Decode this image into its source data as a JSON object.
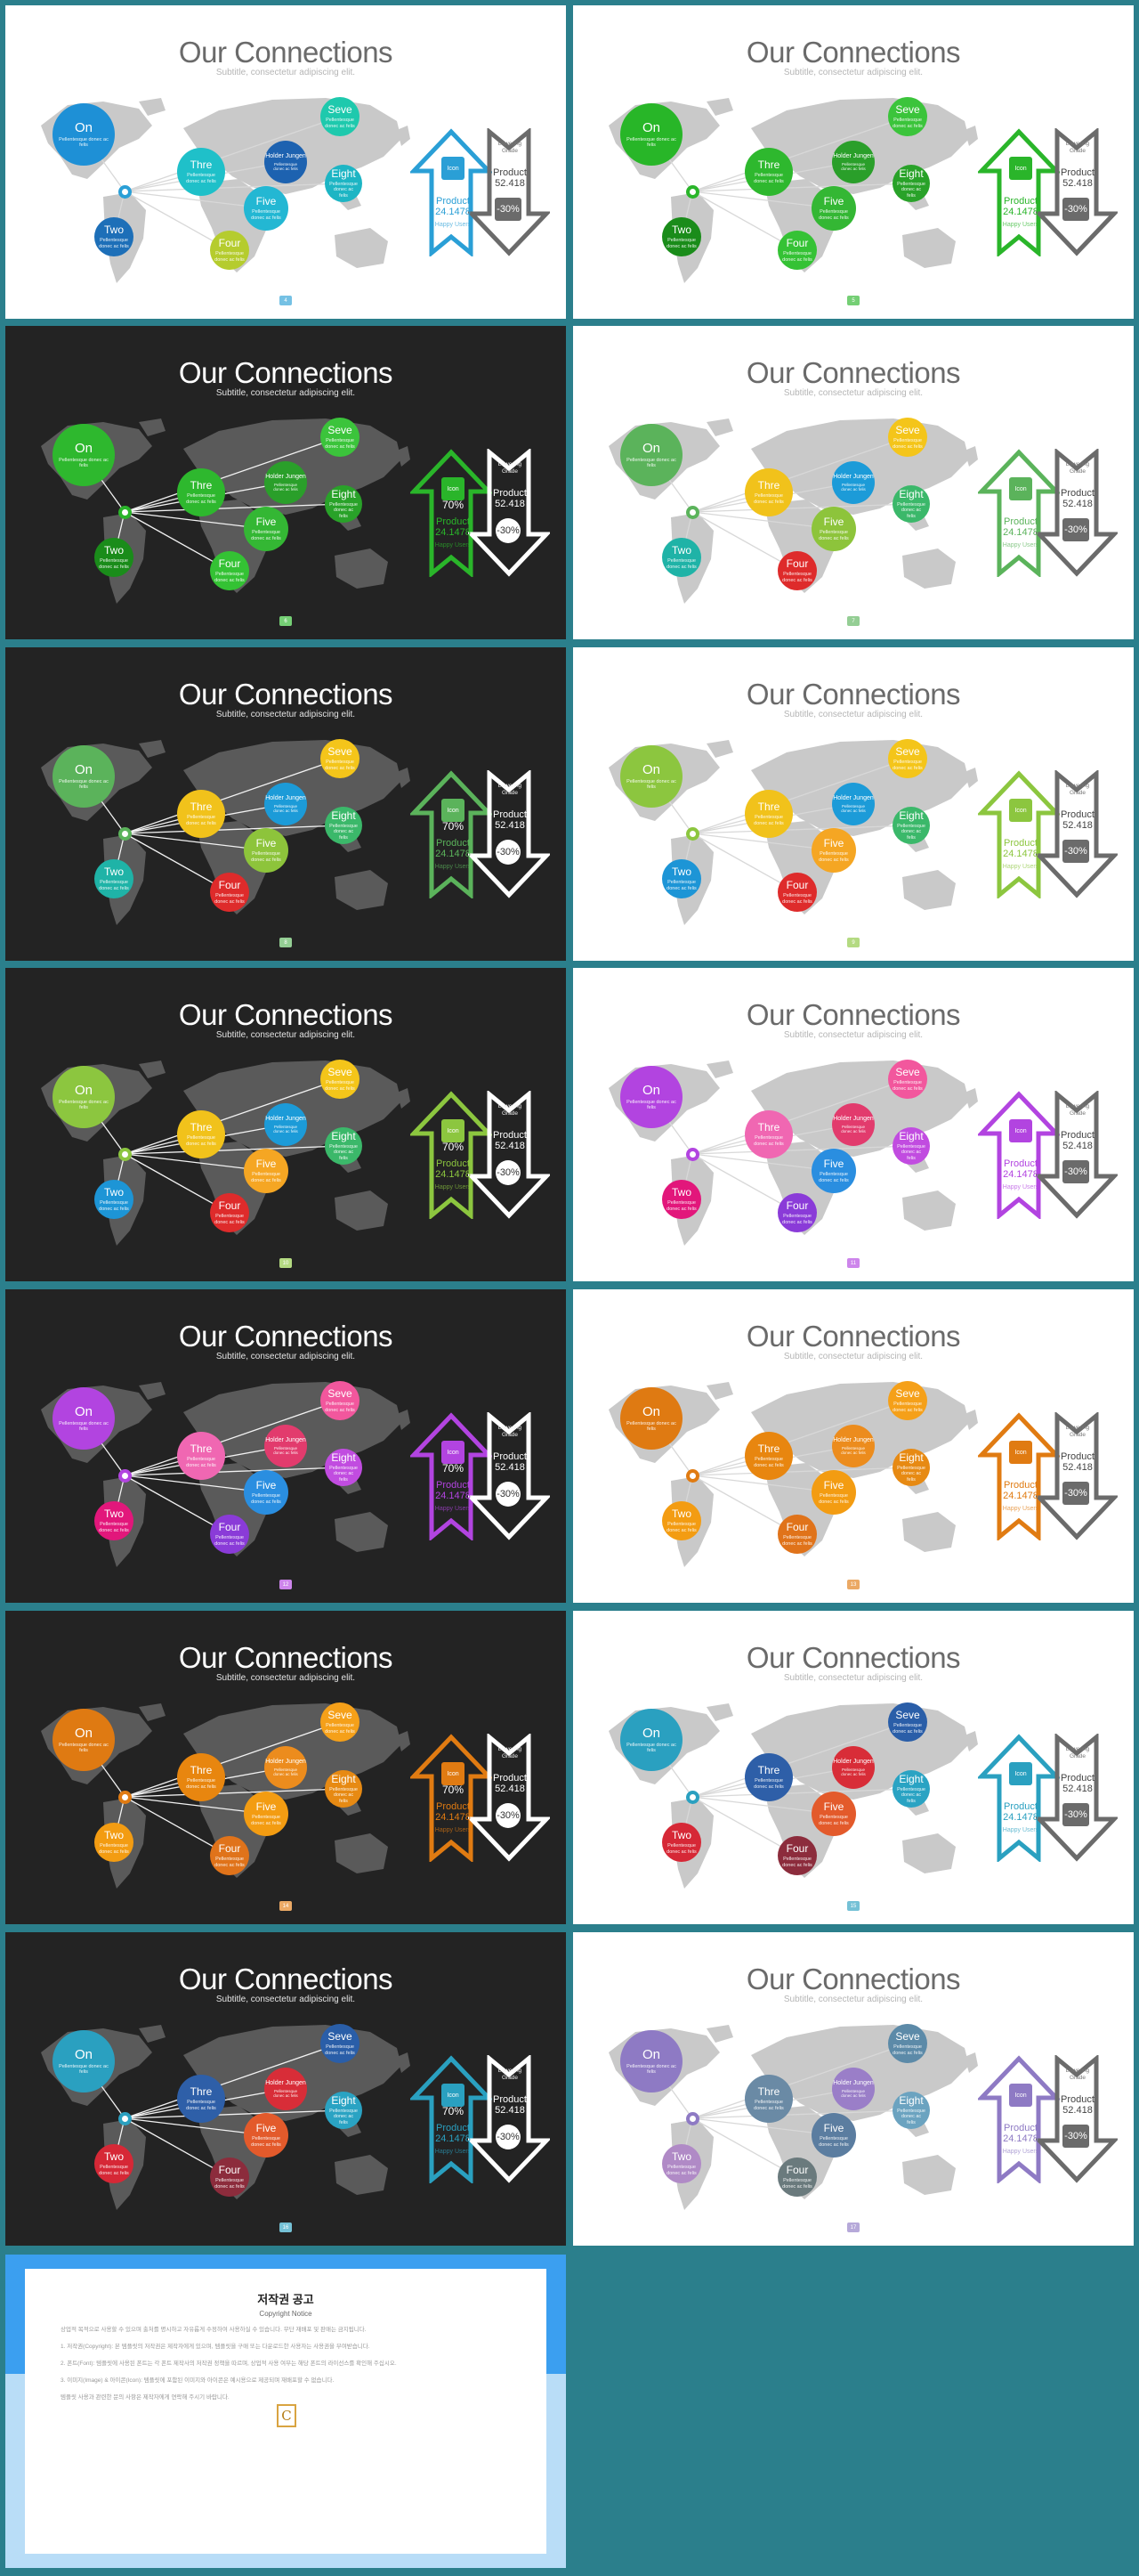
{
  "common": {
    "title": "Our Connections",
    "subtitle": "Subtitle, consectetur adipiscing elit.",
    "bubble_desc": "Pellentesque donec ac felis",
    "up_percent": "70%",
    "up_product": "Product 24.1478",
    "up_fine": "Happy Users",
    "down_label": "Lowering Grade",
    "down_product": "Product 52.418",
    "down_percent": "-30%",
    "square_label": "Icon"
  },
  "bubbles": {
    "on": "On",
    "two": "Two",
    "three": "Thre",
    "four": "Four",
    "five": "Five",
    "six": "Holder Jungen",
    "seven": "Seve",
    "eight": "Eight"
  },
  "slides": [
    {
      "page": "4",
      "theme": "light",
      "accent": "#2a9fd6",
      "colors": {
        "on": "#1e90d6",
        "two": "#1d6fb8",
        "three": "#1fc0c9",
        "four": "#b5cc2e",
        "five": "#23b7d3",
        "six": "#1d62b0",
        "seven": "#1ec9ad",
        "eight": "#1db5c4"
      }
    },
    {
      "page": "5",
      "theme": "light",
      "accent": "#2ab52a",
      "colors": {
        "on": "#28b628",
        "two": "#1a8c1a",
        "three": "#2eb82e",
        "four": "#35c235",
        "five": "#34b734",
        "six": "#2a9f2a",
        "seven": "#3bc43b",
        "eight": "#29a229"
      }
    },
    {
      "page": "6",
      "theme": "dark",
      "accent": "#2ab52a",
      "colors": {
        "on": "#2eb82e",
        "two": "#1a8c1a",
        "three": "#2eb82e",
        "four": "#34c234",
        "five": "#34b734",
        "six": "#2a9f2a",
        "seven": "#3bc43b",
        "eight": "#29a229"
      }
    },
    {
      "page": "7",
      "theme": "light",
      "accent": "#5bb35b",
      "colors": {
        "on": "#5bb35b",
        "two": "#1fb3a7",
        "three": "#f1c21b",
        "four": "#de2b2b",
        "five": "#8dc43b",
        "six": "#1c9bd8",
        "seven": "#f4c51a",
        "eight": "#3bb86a"
      }
    },
    {
      "page": "8",
      "theme": "dark",
      "accent": "#5bb35b",
      "colors": {
        "on": "#5bb35b",
        "two": "#1fb3a7",
        "three": "#f1c21b",
        "four": "#de2b2b",
        "five": "#8dc43b",
        "six": "#1c9bd8",
        "seven": "#f4c51a",
        "eight": "#3bb86a"
      }
    },
    {
      "page": "9",
      "theme": "light",
      "accent": "#8cc63f",
      "colors": {
        "on": "#8cc63f",
        "two": "#1d95d6",
        "three": "#f1c21b",
        "four": "#de2b2b",
        "five": "#f5a623",
        "six": "#1c9bd8",
        "seven": "#f4c51a",
        "eight": "#3bb86a"
      }
    },
    {
      "page": "10",
      "theme": "dark",
      "accent": "#8cc63f",
      "colors": {
        "on": "#8cc63f",
        "two": "#1d95d6",
        "three": "#f1c21b",
        "four": "#de2b2b",
        "five": "#f5a623",
        "six": "#1c9bd8",
        "seven": "#f4c51a",
        "eight": "#3bb86a"
      }
    },
    {
      "page": "11",
      "theme": "light",
      "accent": "#b244e0",
      "colors": {
        "on": "#b244e0",
        "two": "#e2177b",
        "three": "#f067b2",
        "four": "#8a3bd8",
        "five": "#2a8ee0",
        "six": "#e23b6d",
        "seven": "#f2579d",
        "eight": "#c14ce0"
      }
    },
    {
      "page": "12",
      "theme": "dark",
      "accent": "#b244e0",
      "colors": {
        "on": "#b244e0",
        "two": "#e2177b",
        "three": "#f067b2",
        "four": "#8a3bd8",
        "five": "#2a8ee0",
        "six": "#e23b6d",
        "seven": "#f2579d",
        "eight": "#c14ce0"
      }
    },
    {
      "page": "13",
      "theme": "light",
      "accent": "#e07b12",
      "colors": {
        "on": "#df7a12",
        "two": "#f39c12",
        "three": "#e8860f",
        "four": "#e0731a",
        "five": "#f39c12",
        "six": "#ec8c1d",
        "seven": "#f5a019",
        "eight": "#e78a13"
      }
    },
    {
      "page": "14",
      "theme": "dark",
      "accent": "#e07b12",
      "colors": {
        "on": "#df7a12",
        "two": "#f39c12",
        "three": "#e8860f",
        "four": "#e0731a",
        "five": "#f39c12",
        "six": "#ec8c1d",
        "seven": "#f5a019",
        "eight": "#e78a13"
      }
    },
    {
      "page": "15",
      "theme": "light",
      "accent": "#2aa0c0",
      "colors": {
        "on": "#2aa0c0",
        "two": "#d62836",
        "three": "#2e5fa8",
        "four": "#8c2c3c",
        "five": "#e35a2b",
        "six": "#d82d38",
        "seven": "#2a5ea8",
        "eight": "#2aa3c3"
      }
    },
    {
      "page": "16",
      "theme": "dark",
      "accent": "#2aa0c0",
      "colors": {
        "on": "#2aa0c0",
        "two": "#d62836",
        "three": "#2e5fa8",
        "four": "#8c2c3c",
        "five": "#e35a2b",
        "six": "#d82d38",
        "seven": "#2a5ea8",
        "eight": "#2aa3c3"
      }
    },
    {
      "page": "17",
      "theme": "light",
      "accent": "#8e7ac4",
      "colors": {
        "on": "#8e7ac4",
        "two": "#b08ac6",
        "three": "#6a8aa5",
        "four": "#6a7a7d",
        "five": "#5b7da0",
        "six": "#9a7ec8",
        "seven": "#5c8aa8",
        "eight": "#6ba3c0"
      }
    }
  ],
  "copyright": {
    "title": "저작권 공고",
    "subtitle": "Copyright Notice",
    "p1": "상업적 목적으로 사용할 수 있으며 출처를 명시하고 자유롭게 수정하여 사용하실 수 있습니다. 무단 재배포 및 판매는 금지됩니다.",
    "p2": "1. 저작권(Copyright): 본 템플릿의 저작권은 제작자에게 있으며, 템플릿을 구매 또는 다운로드한 사용자는 사용권을 부여받습니다.",
    "p3": "2. 폰트(Font): 템플릿에 사용된 폰트는 각 폰트 제작사의 저작권 정책을 따르며, 상업적 사용 여부는 해당 폰트의 라이선스를 확인해 주십시오.",
    "p4": "3. 이미지(Image) & 아이콘(Icon): 템플릿에 포함된 이미지와 아이콘은 예시용으로 제공되며 재배포할 수 없습니다.",
    "p5": "템플릿 사용과 관련한 문의 사항은 제작자에게 연락해 주시기 바랍니다."
  }
}
